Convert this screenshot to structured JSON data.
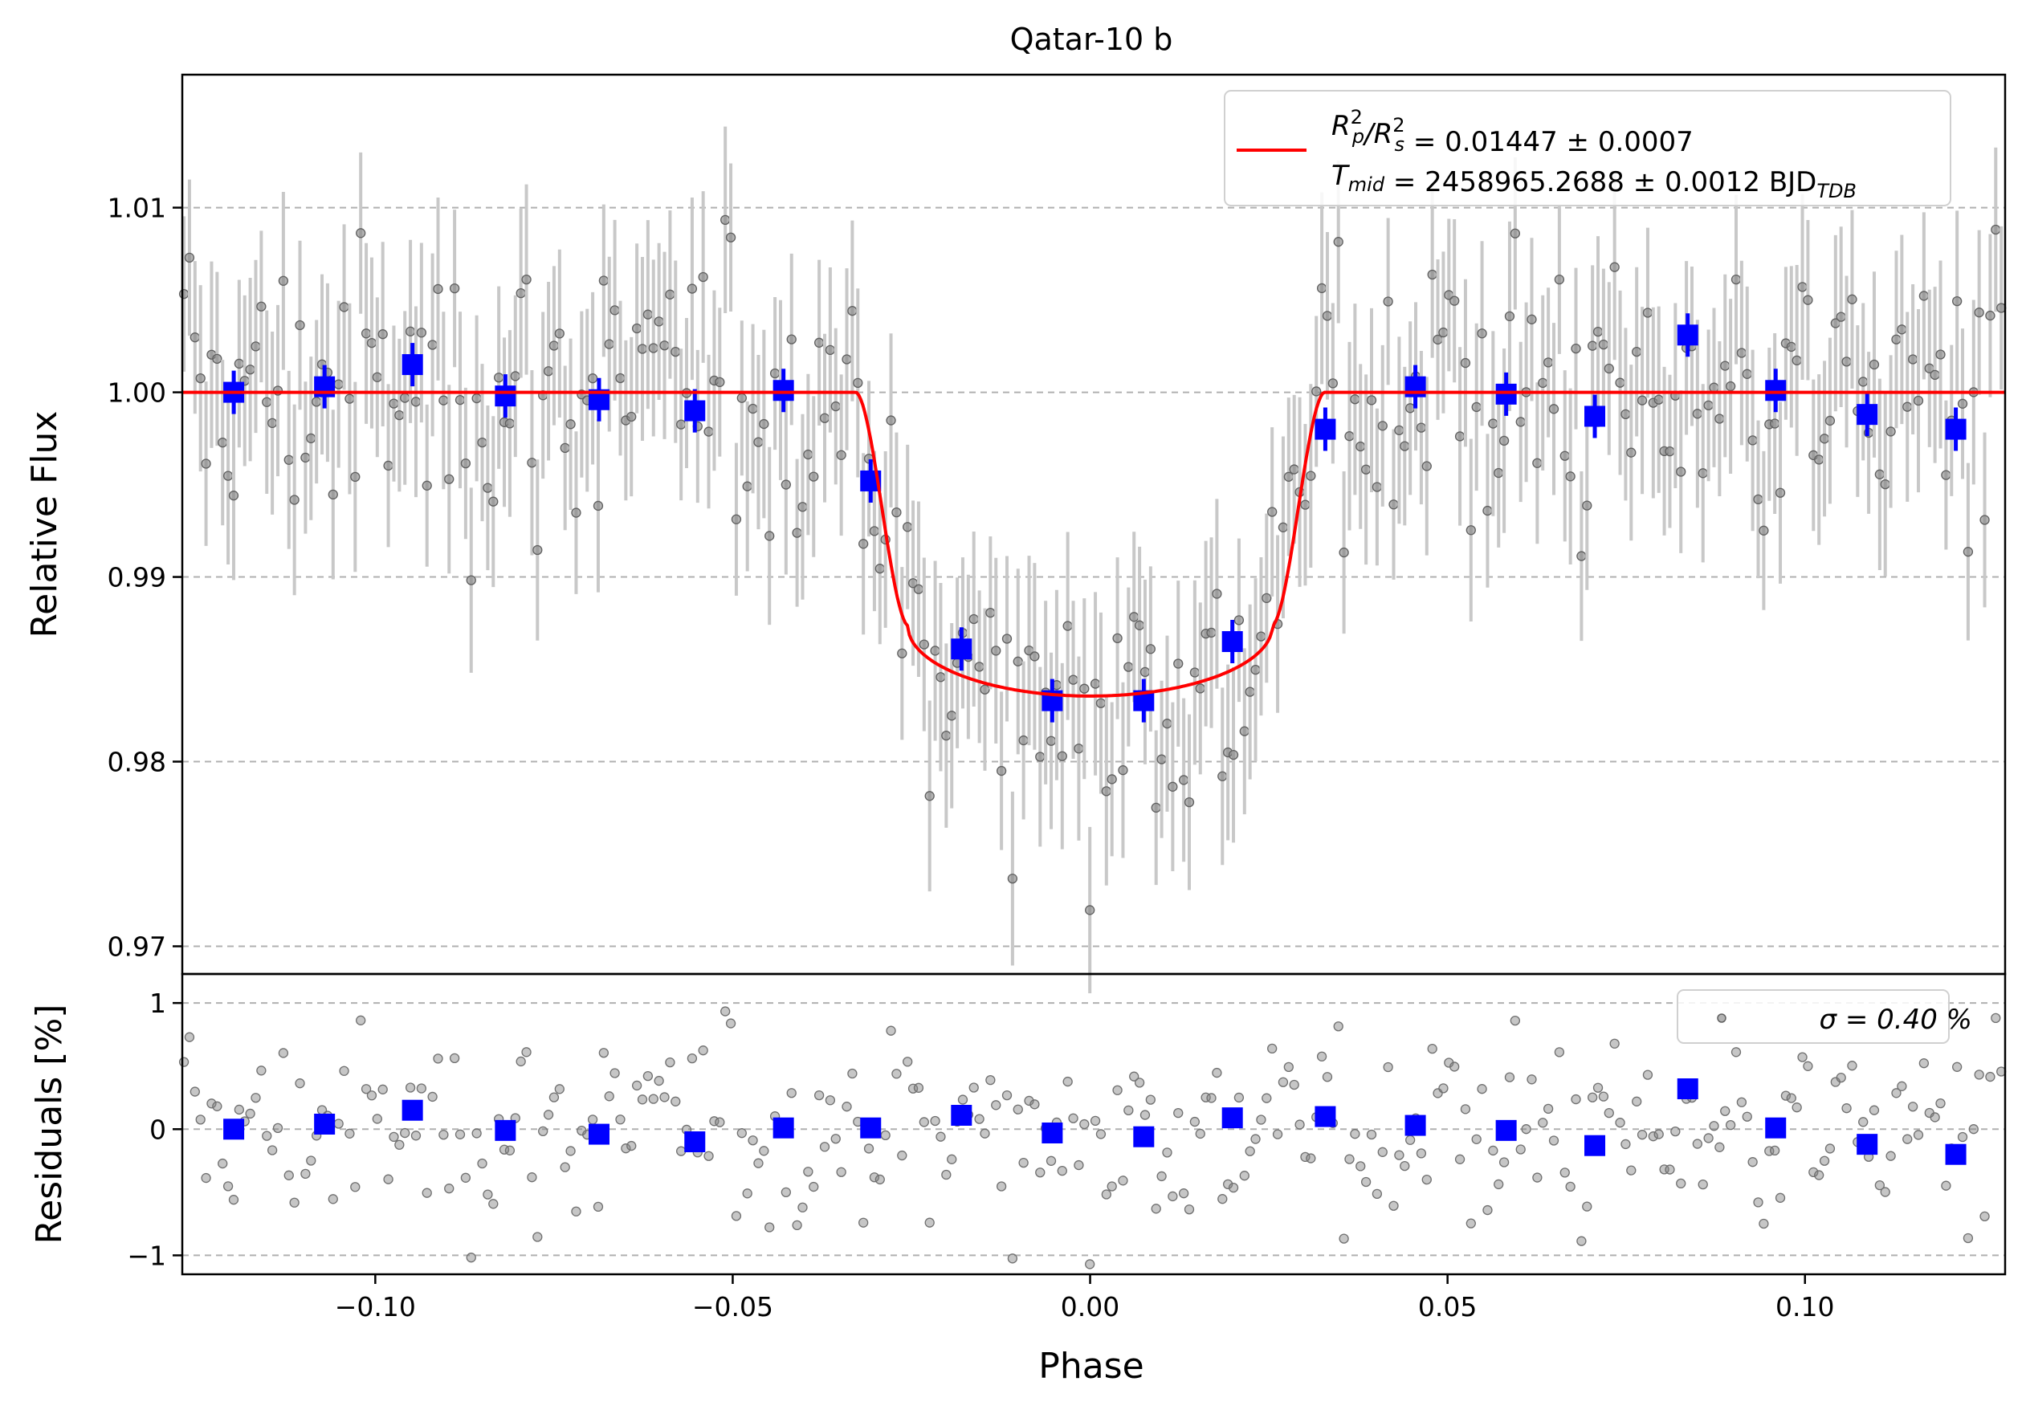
{
  "title": "Qatar-10 b",
  "colors": {
    "raw": "#808080",
    "rawErr": "#c8c8c8",
    "binned": "#0000ff",
    "model": "#ff0000",
    "grid": "#b0b0b0"
  },
  "legend": {
    "model_label": "R_p^2/R_s^2 = 0.01447 ± 0.0007",
    "tmid_label": "T_mid = 2458965.2688 ± 0.0012 BJD_TDB",
    "sigma_label": "σ = 0.40 %"
  },
  "chart_data": [
    {
      "type": "scatter",
      "panel": "light curve",
      "xlabel": "",
      "ylabel": "Relative Flux",
      "xlim": [
        -0.127,
        0.128
      ],
      "ylim": [
        0.9685,
        1.0172
      ],
      "yticks": [
        "1.01",
        "1.00",
        "0.99",
        "0.98",
        "0.97"
      ],
      "grid": "horizontal dashed",
      "legend_position": "top-right",
      "model": {
        "rp2_rs2": 0.01447,
        "rp2_rs2_err": 0.0007,
        "tmid": 2458965.2688,
        "tmid_err": 0.0012,
        "tmid_unit": "BJD_TDB",
        "contact_phases": {
          "t1": -0.0327,
          "t2": -0.0255,
          "t3": 0.0255,
          "t4": 0.0327
        },
        "baseline": 1.0,
        "min_flux": 0.98355
      },
      "binned": {
        "x": [
          -0.1198,
          -0.1071,
          -0.0948,
          -0.0818,
          -0.0687,
          -0.0553,
          -0.0429,
          -0.0307,
          -0.018,
          -0.0053,
          0.0075,
          0.0199,
          0.0329,
          0.0455,
          0.0582,
          0.0706,
          0.0836,
          0.0959,
          0.1087,
          0.1211
        ],
        "y": [
          1.0,
          1.0003,
          1.0015,
          0.9998,
          0.9996,
          0.999,
          1.0001,
          0.9952,
          0.9861,
          0.9833,
          0.9833,
          0.9865,
          0.998,
          1.0003,
          0.9999,
          0.9987,
          1.0031,
          1.0001,
          0.9988,
          0.998
        ]
      }
    },
    {
      "type": "scatter",
      "panel": "residuals",
      "xlabel": "Phase",
      "ylabel": "Residuals [%]",
      "xlim": [
        -0.127,
        0.128
      ],
      "ylim": [
        -1.15,
        1.23
      ],
      "xticks": [
        "−0.10",
        "−0.05",
        "0.00",
        "0.05",
        "0.10"
      ],
      "yticks": [
        "1",
        "0",
        "−1"
      ],
      "sigma_percent": 0.4,
      "legend_position": "top-right",
      "binned": {
        "x": [
          -0.1198,
          -0.1071,
          -0.0948,
          -0.0818,
          -0.0687,
          -0.0553,
          -0.0429,
          -0.0307,
          -0.018,
          -0.0053,
          0.0075,
          0.0199,
          0.0329,
          0.0455,
          0.0582,
          0.0706,
          0.0836,
          0.0959,
          0.1087,
          0.1211
        ],
        "y": [
          0.0,
          0.04,
          0.15,
          -0.01,
          -0.04,
          -0.1,
          0.01,
          0.01,
          0.11,
          -0.03,
          -0.06,
          0.09,
          0.1,
          0.03,
          -0.01,
          -0.13,
          0.32,
          0.01,
          -0.12,
          -0.2
        ]
      }
    }
  ]
}
